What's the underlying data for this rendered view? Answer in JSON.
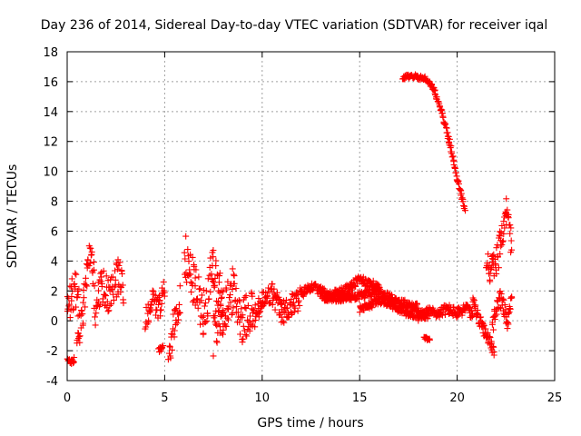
{
  "chart_data": {
    "type": "scatter",
    "title": "Day 236 of 2014, Sidereal Day-to-day VTEC variation (SDTVAR) for receiver iqal",
    "xlabel": "GPS time / hours",
    "ylabel": "SDTVAR / TECUs",
    "xlim": [
      0,
      25
    ],
    "ylim": [
      -4,
      18
    ],
    "xticks": [
      0,
      5,
      10,
      15,
      20,
      25
    ],
    "yticks": [
      -4,
      -2,
      0,
      2,
      4,
      6,
      8,
      10,
      12,
      14,
      16,
      18
    ],
    "grid": true,
    "marker": "+",
    "color": "#ff0000",
    "series": [
      {
        "name": "SDTVAR",
        "approx_traces": [
          {
            "x": [
              0.0,
              0.2,
              0.35
            ],
            "y": [
              -2.6,
              -2.8,
              -2.6
            ],
            "spread": 0.15
          },
          {
            "x": [
              0.0,
              0.2,
              0.4,
              0.6
            ],
            "y": [
              0.5,
              1.5,
              2.2,
              1.0
            ],
            "spread": 1.2
          },
          {
            "x": [
              0.5,
              0.8,
              1.0,
              1.2,
              1.4
            ],
            "y": [
              -1.2,
              0.5,
              3.0,
              4.6,
              2.5
            ],
            "spread": 1.0
          },
          {
            "x": [
              1.4,
              1.8,
              2.2,
              2.6,
              2.9
            ],
            "y": [
              0.5,
              2.5,
              1.5,
              3.0,
              2.2
            ],
            "spread": 1.2
          },
          {
            "x": [
              4.0,
              4.3,
              4.7,
              5.0
            ],
            "y": [
              -0.3,
              1.5,
              0.8,
              2.0
            ],
            "spread": 0.8
          },
          {
            "x": [
              4.7,
              4.9
            ],
            "y": [
              -2.0,
              -1.8
            ],
            "spread": 0.2
          },
          {
            "x": [
              5.2,
              5.5,
              5.8
            ],
            "y": [
              -2.5,
              0.0,
              1.5
            ],
            "spread": 1.0
          },
          {
            "x": [
              6.0,
              6.5,
              7.0,
              7.5,
              8.0
            ],
            "y": [
              4.5,
              2.5,
              0.5,
              3.5,
              1.5
            ],
            "spread": 1.5
          },
          {
            "x": [
              7.5,
              8.0,
              8.5,
              9.0,
              9.5
            ],
            "y": [
              -1.0,
              0.5,
              2.0,
              0.0,
              1.0
            ],
            "spread": 1.5
          },
          {
            "x": [
              9.5,
              10.0,
              10.5,
              11.0,
              11.5,
              12.0
            ],
            "y": [
              0.0,
              1.2,
              1.8,
              0.5,
              1.0,
              1.6
            ],
            "spread": 0.8
          },
          {
            "x": [
              12.0,
              12.5,
              13.0,
              13.5,
              14.0,
              14.5,
              15.0,
              15.5,
              16.0
            ],
            "y": [
              1.8,
              2.3,
              2.0,
              1.7,
              1.9,
              2.2,
              2.8,
              2.5,
              2.2
            ],
            "spread": 0.3
          },
          {
            "x": [
              13.0,
              14.0,
              15.0,
              16.0,
              16.5,
              17.0,
              17.5,
              18.0
            ],
            "y": [
              1.6,
              1.5,
              1.7,
              2.0,
              1.6,
              1.3,
              1.1,
              0.9
            ],
            "spread": 0.25
          },
          {
            "x": [
              15.0,
              15.5,
              16.0,
              16.5,
              17.0,
              17.5,
              18.0,
              18.5
            ],
            "y": [
              0.8,
              1.0,
              1.4,
              1.2,
              0.8,
              0.5,
              0.4,
              0.3
            ],
            "spread": 0.25
          },
          {
            "x": [
              18.0,
              18.5,
              19.0,
              19.5,
              20.0,
              20.5,
              20.8
            ],
            "y": [
              0.3,
              0.6,
              0.5,
              0.8,
              0.5,
              0.9,
              0.2
            ],
            "spread": 0.35
          },
          {
            "x": [
              18.3,
              18.6
            ],
            "y": [
              -1.1,
              -1.3
            ],
            "spread": 0.1
          },
          {
            "x": [
              17.2,
              17.6,
              18.0,
              18.4,
              18.8,
              19.2,
              19.6,
              20.0,
              20.4
            ],
            "y": [
              16.2,
              16.4,
              16.3,
              16.2,
              15.5,
              14.0,
              12.0,
              9.5,
              7.5
            ],
            "spread": 0.15
          },
          {
            "x": [
              20.8,
              21.0,
              21.3,
              21.6,
              21.9
            ],
            "y": [
              1.5,
              0.5,
              -0.5,
              -1.2,
              -2.0
            ],
            "spread": 0.4
          },
          {
            "x": [
              21.5,
              21.8,
              22.0,
              22.2,
              22.5,
              22.8
            ],
            "y": [
              3.8,
              3.5,
              4.0,
              5.0,
              7.5,
              5.0
            ],
            "spread": 1.0
          },
          {
            "x": [
              21.8,
              22.2,
              22.6,
              22.8
            ],
            "y": [
              -0.5,
              1.5,
              0.0,
              2.0
            ],
            "spread": 0.6
          }
        ]
      }
    ]
  }
}
